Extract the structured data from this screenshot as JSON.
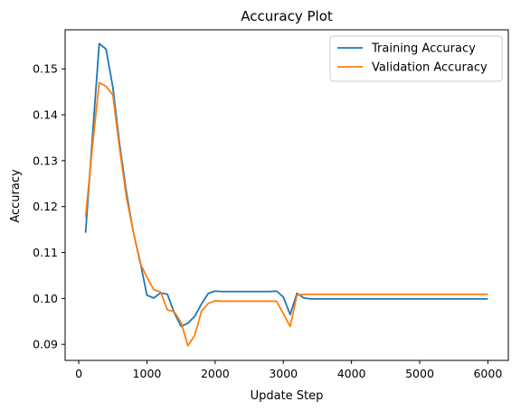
{
  "chart_data": {
    "type": "line",
    "title": "Accuracy Plot",
    "xlabel": "Update Step",
    "ylabel": "Accuracy",
    "xlim": [
      -200,
      6300
    ],
    "ylim": [
      0.0865,
      0.1585
    ],
    "xticks": [
      0,
      1000,
      2000,
      3000,
      4000,
      5000,
      6000
    ],
    "yticks": [
      0.09,
      0.1,
      0.11,
      0.12,
      0.13,
      0.14,
      0.15
    ],
    "ytick_labels": [
      "0.09",
      "0.10",
      "0.11",
      "0.12",
      "0.13",
      "0.14",
      "0.15"
    ],
    "grid": false,
    "legend_position": "top-right",
    "series": [
      {
        "name": "Training Accuracy",
        "color": "#1f77b4",
        "x": [
          100,
          200,
          300,
          400,
          500,
          600,
          700,
          800,
          900,
          1000,
          1100,
          1200,
          1300,
          1400,
          1500,
          1600,
          1700,
          1800,
          1900,
          2000,
          2100,
          2200,
          2300,
          2400,
          2500,
          2600,
          2700,
          2800,
          2900,
          3000,
          3100,
          3200,
          3300,
          3400,
          3500,
          4000,
          5000,
          6000
        ],
        "y": [
          0.1143,
          0.135,
          0.1555,
          0.1543,
          0.146,
          0.1335,
          0.123,
          0.1145,
          0.108,
          0.1007,
          0.1001,
          0.1012,
          0.1009,
          0.0969,
          0.0939,
          0.0946,
          0.0961,
          0.0988,
          0.1011,
          0.1016,
          0.1015,
          0.1015,
          0.1015,
          0.1015,
          0.1015,
          0.1015,
          0.1015,
          0.1015,
          0.1016,
          0.1003,
          0.0965,
          0.1011,
          0.1001,
          0.0999,
          0.0999,
          0.0999,
          0.0999,
          0.0999
        ]
      },
      {
        "name": "Validation Accuracy",
        "color": "#ff7f0e",
        "x": [
          100,
          200,
          300,
          400,
          500,
          600,
          700,
          800,
          900,
          1000,
          1100,
          1200,
          1300,
          1400,
          1500,
          1600,
          1700,
          1800,
          1900,
          2000,
          2100,
          2200,
          2300,
          2400,
          2500,
          2600,
          2700,
          2800,
          2900,
          3000,
          3100,
          3200,
          3300,
          3400,
          3500,
          4000,
          5000,
          6000
        ],
        "y": [
          0.1177,
          0.133,
          0.147,
          0.1462,
          0.1443,
          0.1325,
          0.122,
          0.1145,
          0.1077,
          0.1046,
          0.1019,
          0.1014,
          0.0975,
          0.0971,
          0.0948,
          0.0897,
          0.0919,
          0.0972,
          0.0989,
          0.0995,
          0.0994,
          0.0994,
          0.0994,
          0.0994,
          0.0994,
          0.0994,
          0.0994,
          0.0994,
          0.0994,
          0.0967,
          0.0939,
          0.1007,
          0.1009,
          0.1009,
          0.1009,
          0.1009,
          0.1009,
          0.1009
        ]
      }
    ]
  }
}
